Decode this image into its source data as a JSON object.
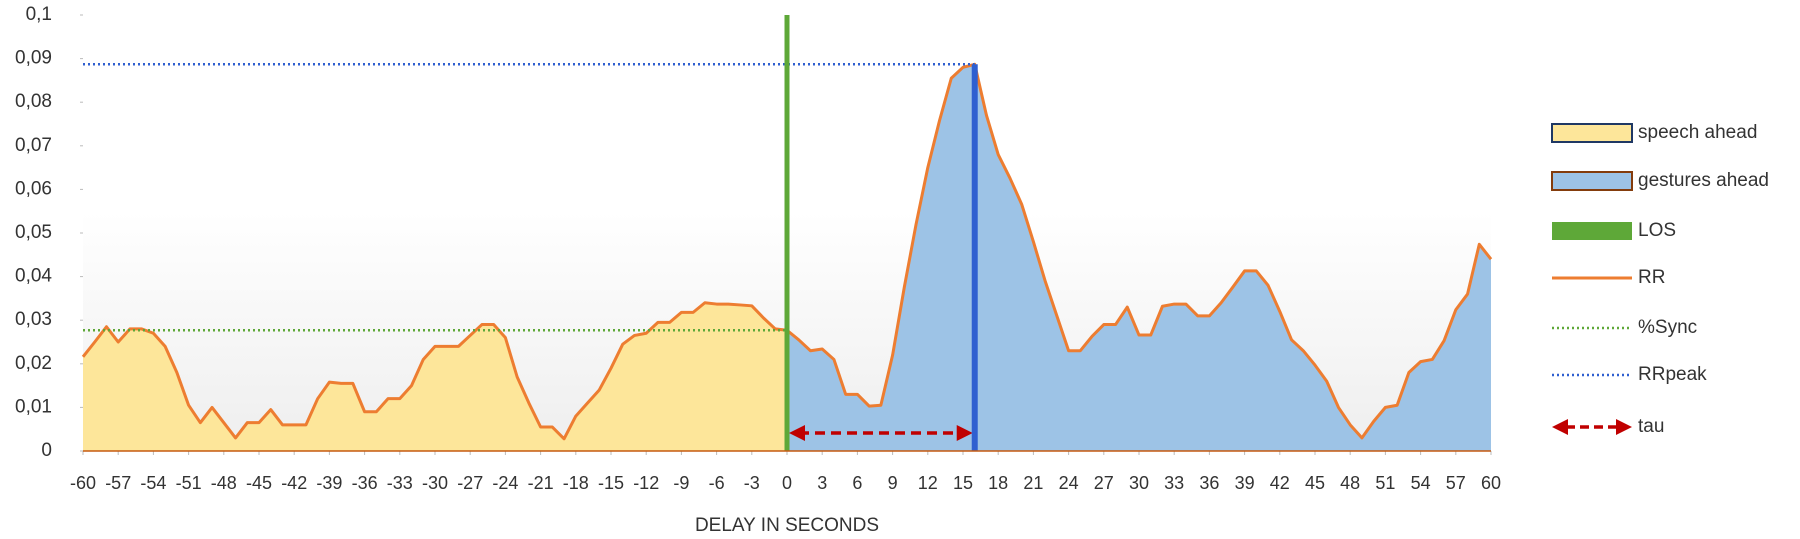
{
  "chart_data": {
    "type": "area",
    "x_label": "DELAY IN SECONDS",
    "x": [
      -60,
      -59,
      -58,
      -57,
      -56,
      -55,
      -54,
      -53,
      -52,
      -51,
      -50,
      -49,
      -48,
      -47,
      -46,
      -45,
      -44,
      -43,
      -42,
      -41,
      -40,
      -39,
      -38,
      -37,
      -36,
      -35,
      -34,
      -33,
      -32,
      -31,
      -30,
      -29,
      -28,
      -27,
      -26,
      -25,
      -24,
      -23,
      -22,
      -21,
      -20,
      -19,
      -18,
      -17,
      -16,
      -15,
      -14,
      -13,
      -12,
      -11,
      -10,
      -9,
      -8,
      -7,
      -6,
      -5,
      -4,
      -3,
      -2,
      -1,
      0,
      1,
      2,
      3,
      4,
      5,
      6,
      7,
      8,
      9,
      10,
      11,
      12,
      13,
      14,
      15,
      16,
      17,
      18,
      19,
      20,
      21,
      22,
      23,
      24,
      25,
      26,
      27,
      28,
      29,
      30,
      31,
      32,
      33,
      34,
      35,
      36,
      37,
      38,
      39,
      40,
      41,
      42,
      43,
      44,
      45,
      46,
      47,
      48,
      49,
      50,
      51,
      52,
      53,
      54,
      55,
      56,
      57,
      58,
      59,
      60
    ],
    "xlim": [
      -60,
      60
    ],
    "xticks": [
      -60,
      -57,
      -54,
      -51,
      -48,
      -45,
      -42,
      -39,
      -36,
      -33,
      -30,
      -27,
      -24,
      -21,
      -18,
      -15,
      -12,
      -9,
      -6,
      -3,
      0,
      3,
      6,
      9,
      12,
      15,
      18,
      21,
      24,
      27,
      30,
      33,
      36,
      39,
      42,
      45,
      48,
      51,
      54,
      57,
      60
    ],
    "ylim": [
      0,
      0.1
    ],
    "yticks": [
      0,
      {
        "value": 0.01,
        "label": "0,01"
      },
      {
        "value": 0.02,
        "label": "0,02"
      },
      {
        "value": 0.03,
        "label": "0,03"
      },
      {
        "value": 0.04,
        "label": "0,04"
      },
      {
        "value": 0.05,
        "label": "0,05"
      },
      {
        "value": 0.06,
        "label": "0,06"
      },
      {
        "value": 0.07,
        "label": "0,07"
      },
      {
        "value": 0.08,
        "label": "0,08"
      },
      {
        "value": 0.09,
        "label": "0,09"
      },
      {
        "value": 0.1,
        "label": "0,1"
      }
    ],
    "series": [
      {
        "name": "speech ahead",
        "type": "area",
        "color": "#fde69a",
        "edge": "#1f3864",
        "side": "left"
      },
      {
        "name": "gestures ahead",
        "type": "area",
        "color": "#9dc3e6",
        "edge": "#843c0c",
        "side": "right"
      },
      {
        "name": "LOS",
        "type": "vline",
        "color": "#5ea838",
        "x": 0,
        "value": 0.1
      },
      {
        "name": "RR",
        "type": "line",
        "color": "#ed7d31",
        "values": [
          0.0216,
          0.025,
          0.0285,
          0.025,
          0.028,
          0.028,
          0.027,
          0.024,
          0.018,
          0.0105,
          0.0065,
          0.01,
          0.0065,
          0.003,
          0.0065,
          0.0065,
          0.0095,
          0.006,
          0.006,
          0.006,
          0.012,
          0.0158,
          0.0155,
          0.0155,
          0.009,
          0.009,
          0.012,
          0.012,
          0.015,
          0.021,
          0.024,
          0.024,
          0.024,
          0.0265,
          0.029,
          0.029,
          0.026,
          0.017,
          0.011,
          0.0055,
          0.0055,
          0.0028,
          0.008,
          0.011,
          0.014,
          0.019,
          0.0245,
          0.0265,
          0.027,
          0.0295,
          0.0295,
          0.0318,
          0.0318,
          0.034,
          0.0337,
          0.0337,
          0.0335,
          0.0333,
          0.0305,
          0.028,
          0.0277,
          0.0255,
          0.023,
          0.0234,
          0.021,
          0.013,
          0.013,
          0.0103,
          0.0105,
          0.022,
          0.0376,
          0.052,
          0.065,
          0.0758,
          0.0855,
          0.088,
          0.0887,
          0.077,
          0.068,
          0.0626,
          0.0566,
          0.048,
          0.039,
          0.031,
          0.023,
          0.023,
          0.0263,
          0.029,
          0.029,
          0.033,
          0.0266,
          0.0266,
          0.0332,
          0.0337,
          0.0337,
          0.031,
          0.031,
          0.034,
          0.0376,
          0.0413,
          0.0413,
          0.038,
          0.032,
          0.0255,
          0.023,
          0.0197,
          0.016,
          0.01,
          0.006,
          0.003,
          0.0068,
          0.01,
          0.0105,
          0.018,
          0.0205,
          0.021,
          0.0253,
          0.0324,
          0.036,
          0.0474,
          0.044
        ]
      },
      {
        "name": "%Sync",
        "type": "hline",
        "color": "#5ea838",
        "value": 0.0277,
        "to": 0
      },
      {
        "name": "RRpeak",
        "type": "hline",
        "color": "#2f5fd0",
        "value": 0.0887,
        "to": 16
      },
      {
        "name": "tau",
        "type": "arrow",
        "color": "#c00000",
        "from": 0,
        "to": 16
      }
    ]
  }
}
